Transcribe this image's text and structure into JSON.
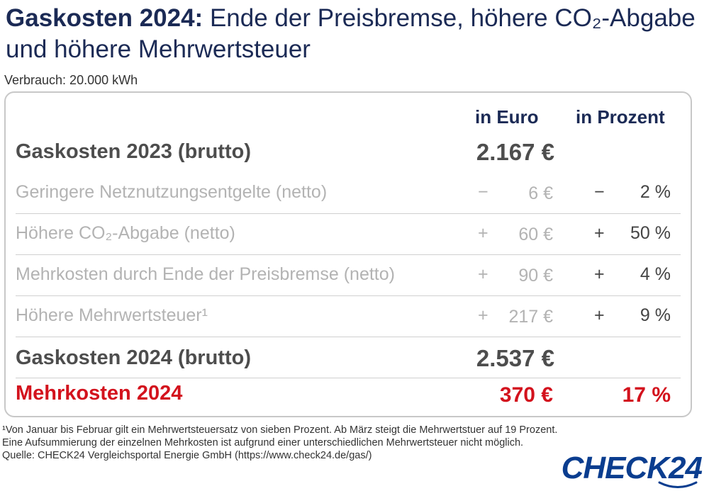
{
  "title": {
    "bold": "Gaskosten 2024:",
    "rest": " Ende der Preisbremse, höhere CO₂-Abgabe und höhere Mehrwertsteuer"
  },
  "subtitle": "Verbrauch: 20.000 kWh",
  "columns": {
    "euro": "in Euro",
    "percent": "in Prozent"
  },
  "rows": [
    {
      "label": "Gaskosten 2023 (brutto)",
      "sign1": "",
      "value": "2.167 €",
      "sign2": "",
      "pct": ""
    },
    {
      "label": "Geringere Netznutzungsentgelte (netto)",
      "sign1": "−",
      "value": "6 €",
      "sign2": "−",
      "pct": "2 %"
    },
    {
      "label": "Höhere CO₂-Abgabe (netto)",
      "sign1": "+",
      "value": "60 €",
      "sign2": "+",
      "pct": "50 %"
    },
    {
      "label": "Mehrkosten durch Ende der Preisbremse (netto)",
      "sign1": "+",
      "value": "90 €",
      "sign2": "+",
      "pct": "4 %"
    },
    {
      "label": "Höhere Mehrwertsteuer¹",
      "sign1": "+",
      "value": "217 €",
      "sign2": "+",
      "pct": "9 %"
    },
    {
      "label": "Gaskosten 2024 (brutto)",
      "sign1": "",
      "value": "2.537 €",
      "sign2": "",
      "pct": ""
    },
    {
      "label": "Mehrkosten 2024",
      "sign1": "",
      "value": "370 €",
      "sign2": "",
      "pct": "17 %"
    }
  ],
  "footnote": [
    "¹Von Januar bis Februar gilt ein Mehrwertsteuersatz von sieben Prozent. Ab März steigt die Mehrwertstuer auf 19 Prozent.",
    "Eine Aufsummierung der einzelnen Mehrkosten ist aufgrund einer unterschiedlichen Mehrwertsteuer nicht möglich.",
    "Quelle: CHECK24 Vergleichsportal Energie GmbH (https://www.check24.de/gas/)"
  ],
  "logo": "CHECK24",
  "colors": {
    "navy": "#1b2a55",
    "red": "#d3121d",
    "grey": "#b3b3b3",
    "dark": "#4d4d4d",
    "logo": "#0a3d8f"
  }
}
